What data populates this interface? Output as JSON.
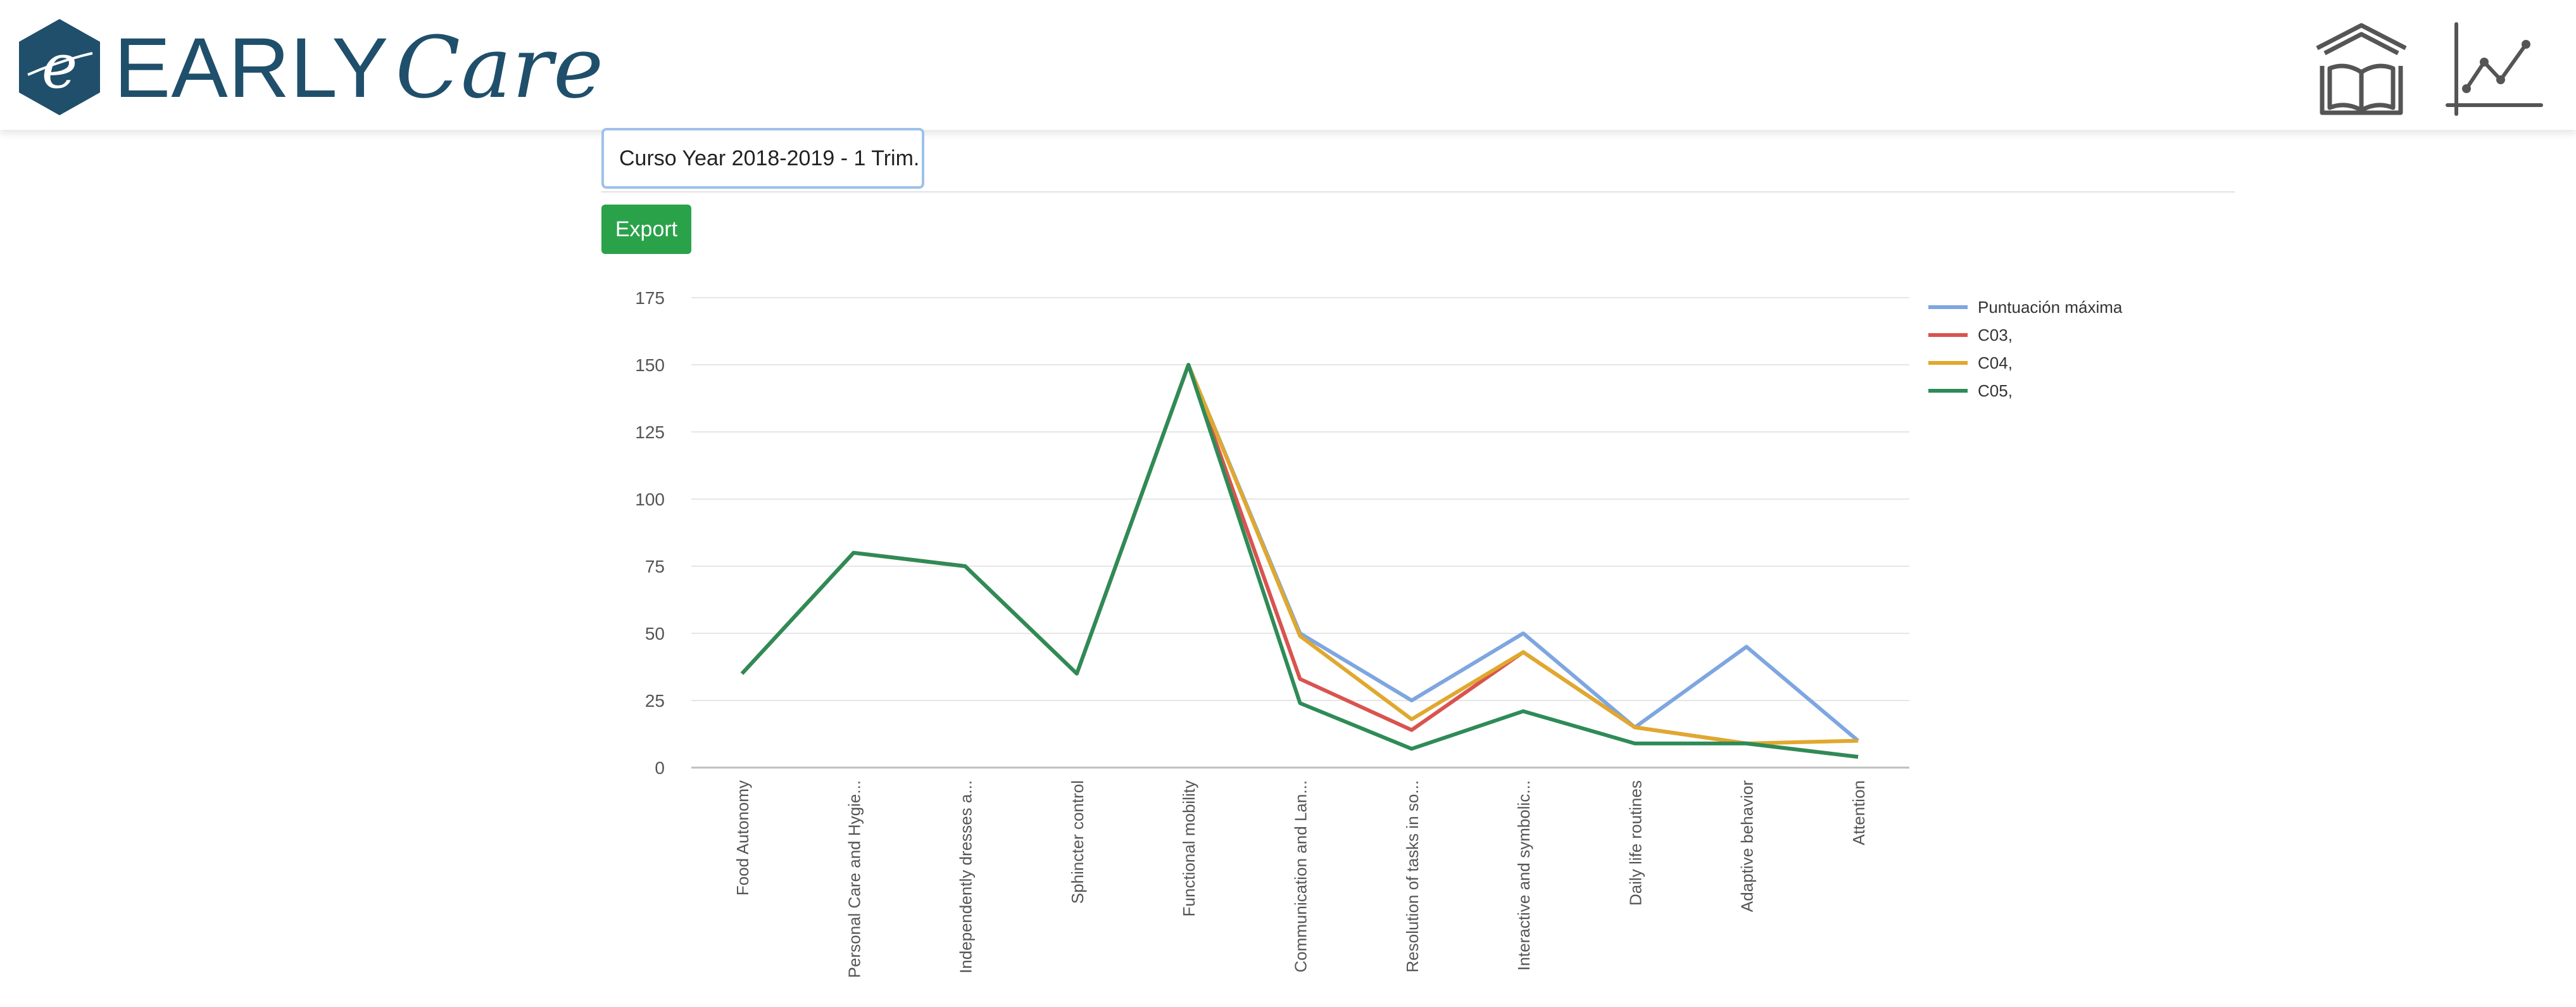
{
  "header": {
    "logo_text_part1": "EARLY",
    "logo_text_part2": "Care",
    "logo_icon": "e-hexagon-logo-icon",
    "nav_icons": [
      "library-book-icon",
      "line-chart-icon"
    ]
  },
  "toolbar": {
    "course_selector_value": "Curso Year 2018-2019 - 1 Trim.",
    "export_label": "Export"
  },
  "colors": {
    "brand": "#1f4f6b",
    "export_button": "#2aa24a",
    "max_series": "#7ea6e0",
    "c03": "#d9534f",
    "c04": "#e0a82e",
    "c05": "#2e8b57"
  },
  "chart_data": {
    "type": "line",
    "categories": [
      "Food Autonomy",
      "Personal Care and Hygie...",
      "Independently dresses a...",
      "Sphincter control",
      "Functional mobility",
      "Communication and Lan...",
      "Resolution of tasks in so...",
      "Interactive and symbolic...",
      "Daily life routines",
      "Adaptive behavior",
      "Attention"
    ],
    "ylim": [
      0,
      175
    ],
    "yticks": [
      0,
      25,
      50,
      75,
      100,
      125,
      150,
      175
    ],
    "grid": true,
    "legend_position": "right",
    "series": [
      {
        "name": "Puntuación máxima",
        "color": "#7ea6e0",
        "values": [
          35,
          80,
          75,
          35,
          150,
          50,
          25,
          50,
          15,
          45,
          10
        ]
      },
      {
        "name": "C03,",
        "color": "#d9534f",
        "values": [
          35,
          80,
          75,
          35,
          150,
          33,
          14,
          43,
          15,
          9,
          4
        ]
      },
      {
        "name": "C04,",
        "color": "#e0a82e",
        "values": [
          35,
          80,
          75,
          35,
          150,
          49,
          18,
          43,
          15,
          9,
          10
        ]
      },
      {
        "name": "C05,",
        "color": "#2e8b57",
        "values": [
          35,
          80,
          75,
          35,
          150,
          24,
          7,
          21,
          9,
          9,
          4
        ]
      }
    ]
  }
}
